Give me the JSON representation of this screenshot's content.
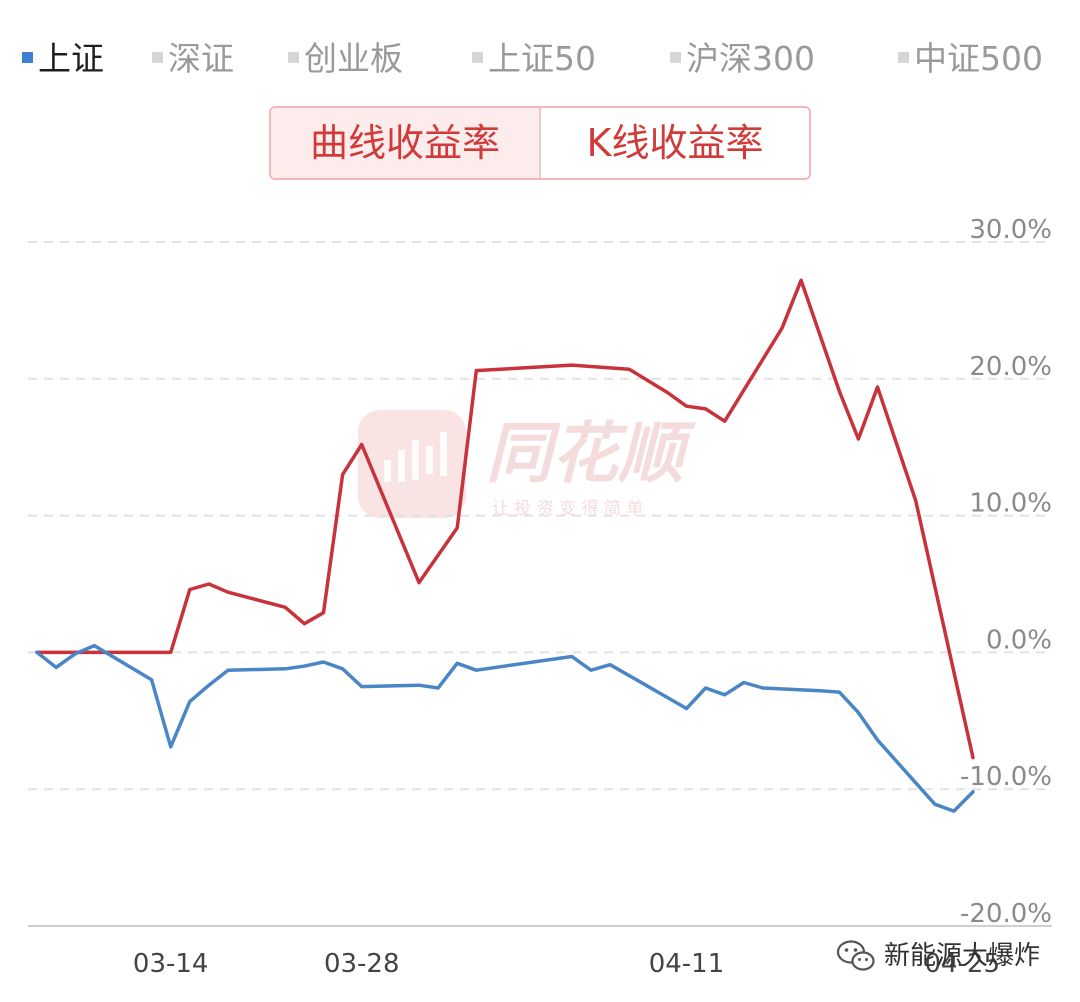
{
  "legend": {
    "items": [
      {
        "label": "上证",
        "active": true
      },
      {
        "label": "深证",
        "active": false
      },
      {
        "label": "创业板",
        "active": false
      },
      {
        "label": "上证50",
        "active": false
      },
      {
        "label": "沪深300",
        "active": false
      },
      {
        "label": "中证500",
        "active": false
      }
    ]
  },
  "toggle": {
    "curve_label": "曲线收益率",
    "kline_label": "K线收益率"
  },
  "watermark": {
    "brand": "同花顺",
    "slogan": "让 投 资 变 得 简 单"
  },
  "credit": {
    "text": "新能源大爆炸",
    "icon": "wechat-icon"
  },
  "chart_data": {
    "type": "line",
    "title": "",
    "xlabel": "",
    "ylabel": "",
    "ylim": [
      -20,
      30
    ],
    "y_ticks": [
      30,
      20,
      10,
      0,
      -10,
      -20
    ],
    "y_tick_labels": [
      "30.0%",
      "20.0%",
      "10.0%",
      "0.0%",
      "-10.0%",
      "-20.0%"
    ],
    "x_tick_labels": [
      {
        "label": "03-14",
        "index": 7
      },
      {
        "label": "03-28",
        "index": 17
      },
      {
        "label": "04-11",
        "index": 34
      },
      {
        "label": "04-25",
        "index": 49
      }
    ],
    "x_count": 50,
    "grid": true,
    "series": [
      {
        "color": "#c8323a",
        "x": [
          0,
          7,
          8,
          9,
          10,
          13,
          14,
          15,
          16,
          17,
          20,
          22,
          23,
          28,
          31,
          33,
          34,
          35,
          36,
          39,
          40,
          42,
          43,
          44,
          46,
          49
        ],
        "y": [
          0.0,
          0.0,
          4.6,
          5.0,
          4.4,
          3.3,
          2.1,
          2.9,
          13.0,
          15.2,
          5.1,
          9.1,
          20.6,
          21.0,
          20.7,
          19.0,
          18.0,
          17.8,
          16.9,
          23.7,
          27.2,
          19.1,
          15.6,
          19.4,
          11.1,
          -7.7
        ]
      },
      {
        "color": "#4a86c6",
        "x": [
          0,
          1,
          2,
          3,
          6,
          7,
          8,
          9,
          10,
          13,
          14,
          15,
          16,
          17,
          20,
          21,
          22,
          23,
          28,
          29,
          30,
          33,
          34,
          35,
          36,
          37,
          38,
          41,
          42,
          43,
          44,
          47,
          48,
          49
        ],
        "y": [
          0.0,
          -1.1,
          -0.1,
          0.5,
          -2.0,
          -6.9,
          -3.6,
          -2.4,
          -1.3,
          -1.2,
          -1.0,
          -0.7,
          -1.2,
          -2.5,
          -2.4,
          -2.6,
          -0.8,
          -1.3,
          -0.3,
          -1.3,
          -0.9,
          -3.3,
          -4.1,
          -2.6,
          -3.1,
          -2.2,
          -2.6,
          -2.8,
          -2.9,
          -4.4,
          -6.4,
          -11.1,
          -11.6,
          -10.2
        ]
      }
    ]
  }
}
